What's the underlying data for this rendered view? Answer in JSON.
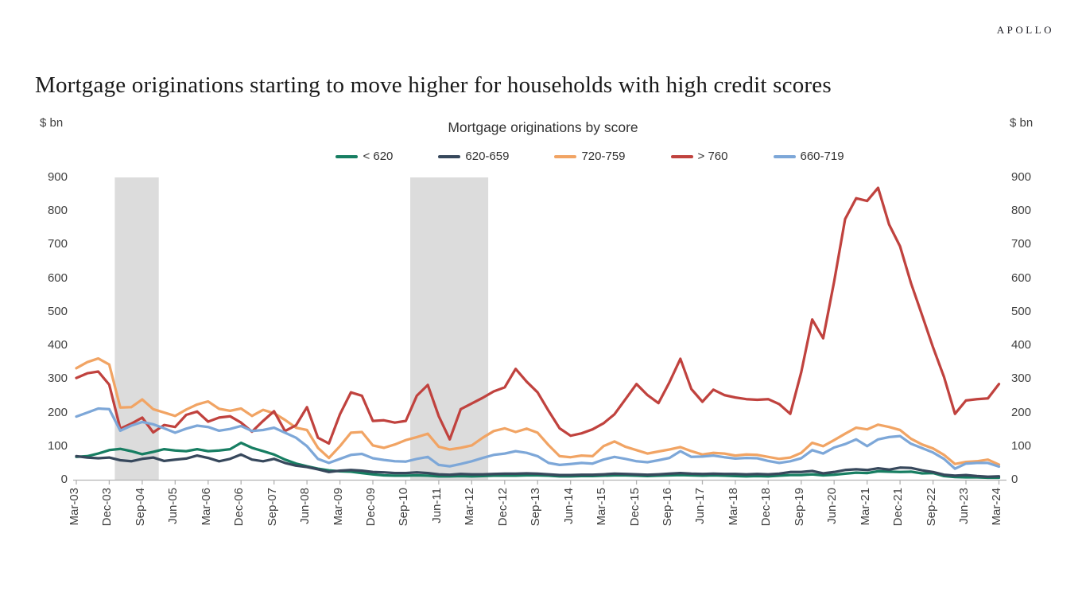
{
  "brand": {
    "logo_text": "APOLLO"
  },
  "header": {
    "title": "Mortgage originations starting to move higher for households with high credit scores"
  },
  "chart_data": {
    "type": "line",
    "title": "Mortgage originations by score",
    "unit_label_left": "$ bn",
    "unit_label_right": "$ bn",
    "ylim": [
      0,
      900
    ],
    "yticks": [
      0,
      100,
      200,
      300,
      400,
      500,
      600,
      700,
      800,
      900
    ],
    "frequency": "quarterly",
    "x_tick_labels": [
      "Mar-03",
      "Dec-03",
      "Sep-04",
      "Jun-05",
      "Mar-06",
      "Dec-06",
      "Sep-07",
      "Jun-08",
      "Mar-09",
      "Dec-09",
      "Sep-10",
      "Jun-11",
      "Mar-12",
      "Dec-12",
      "Sep-13",
      "Jun-14",
      "Mar-15",
      "Dec-15",
      "Sep-16",
      "Jun-17",
      "Mar-18",
      "Dec-18",
      "Sep-19",
      "Jun-20",
      "Mar-21",
      "Dec-21",
      "Sep-22",
      "Jun-23",
      "Mar-24"
    ],
    "legend_position": "top",
    "grid": false,
    "shaded_bands": [
      {
        "from_q": 3.5,
        "to_q": 7.5
      },
      {
        "from_q": 30.4,
        "to_q": 37.5
      }
    ],
    "band_color": "#dcdcdc",
    "axis_color": "#b3b3b3",
    "tick_text_color": "#3f3f3f",
    "series": [
      {
        "name": "< 620",
        "slug": "under-620",
        "color": "#177e62",
        "values": [
          68,
          70,
          78,
          88,
          92,
          85,
          76,
          83,
          91,
          87,
          85,
          91,
          85,
          87,
          91,
          110,
          95,
          85,
          75,
          60,
          48,
          40,
          33,
          28,
          25,
          24,
          20,
          16,
          13,
          12,
          12,
          13,
          12,
          10,
          10,
          11,
          10,
          11,
          12,
          12,
          12,
          13,
          13,
          12,
          10,
          10,
          11,
          11,
          12,
          13,
          13,
          12,
          11,
          12,
          13,
          14,
          13,
          12,
          13,
          12,
          11,
          10,
          11,
          10,
          12,
          14,
          14,
          16,
          13,
          15,
          18,
          21,
          20,
          25,
          24,
          23,
          24,
          19,
          20,
          11,
          8,
          7,
          7,
          6,
          6
        ]
      },
      {
        "name": "620-659",
        "slug": "620-659",
        "color": "#37485c",
        "values": [
          70,
          66,
          64,
          66,
          58,
          55,
          62,
          66,
          56,
          60,
          63,
          72,
          65,
          55,
          62,
          75,
          60,
          55,
          62,
          50,
          42,
          38,
          31,
          23,
          27,
          29,
          27,
          23,
          22,
          20,
          20,
          22,
          20,
          16,
          15,
          17,
          16,
          16,
          17,
          18,
          18,
          19,
          18,
          16,
          14,
          14,
          15,
          15,
          16,
          18,
          17,
          16,
          15,
          16,
          18,
          20,
          18,
          17,
          18,
          17,
          17,
          16,
          17,
          16,
          18,
          23,
          23,
          26,
          19,
          23,
          29,
          31,
          29,
          34,
          30,
          36,
          35,
          28,
          23,
          15,
          12,
          14,
          11,
          9,
          10
        ]
      },
      {
        "name": "720-759",
        "slug": "720-759",
        "color": "#f1a464",
        "values": [
          332,
          350,
          361,
          343,
          215,
          216,
          239,
          210,
          200,
          190,
          209,
          224,
          233,
          211,
          205,
          212,
          190,
          208,
          198,
          178,
          155,
          148,
          95,
          65,
          100,
          140,
          142,
          102,
          95,
          105,
          118,
          127,
          137,
          98,
          90,
          95,
          102,
          125,
          145,
          153,
          142,
          152,
          140,
          103,
          70,
          67,
          72,
          70,
          100,
          114,
          98,
          88,
          78,
          84,
          90,
          97,
          85,
          75,
          80,
          78,
          72,
          75,
          74,
          68,
          62,
          66,
          80,
          110,
          100,
          118,
          137,
          155,
          150,
          164,
          157,
          148,
          122,
          105,
          93,
          74,
          47,
          53,
          55,
          60,
          45
        ]
      },
      {
        "name": "> 760",
        "slug": "over-760",
        "color": "#c0423e",
        "values": [
          303,
          317,
          322,
          283,
          152,
          167,
          185,
          141,
          163,
          157,
          193,
          203,
          173,
          185,
          189,
          170,
          143,
          175,
          204,
          145,
          162,
          216,
          125,
          108,
          195,
          260,
          250,
          175,
          177,
          170,
          175,
          250,
          282,
          189,
          120,
          210,
          227,
          244,
          263,
          275,
          330,
          292,
          260,
          205,
          153,
          131,
          138,
          150,
          168,
          195,
          240,
          285,
          252,
          228,
          290,
          360,
          270,
          232,
          268,
          252,
          245,
          240,
          238,
          240,
          225,
          196,
          320,
          477,
          421,
          590,
          776,
          838,
          830,
          869,
          760,
          695,
          585,
          490,
          394,
          306,
          196,
          236,
          240,
          242,
          285
        ]
      },
      {
        "name": "660-719",
        "slug": "660-719",
        "color": "#7da7d8",
        "values": [
          188,
          200,
          212,
          210,
          146,
          161,
          172,
          165,
          153,
          140,
          152,
          161,
          157,
          146,
          151,
          160,
          145,
          148,
          155,
          140,
          125,
          100,
          62,
          50,
          62,
          74,
          77,
          64,
          59,
          55,
          54,
          62,
          68,
          44,
          40,
          47,
          55,
          65,
          74,
          78,
          85,
          80,
          70,
          50,
          44,
          47,
          50,
          48,
          60,
          68,
          62,
          55,
          52,
          58,
          65,
          85,
          68,
          69,
          72,
          67,
          63,
          65,
          64,
          56,
          50,
          55,
          64,
          88,
          78,
          96,
          106,
          120,
          100,
          120,
          127,
          130,
          107,
          94,
          81,
          62,
          33,
          48,
          50,
          50,
          39
        ]
      }
    ]
  }
}
